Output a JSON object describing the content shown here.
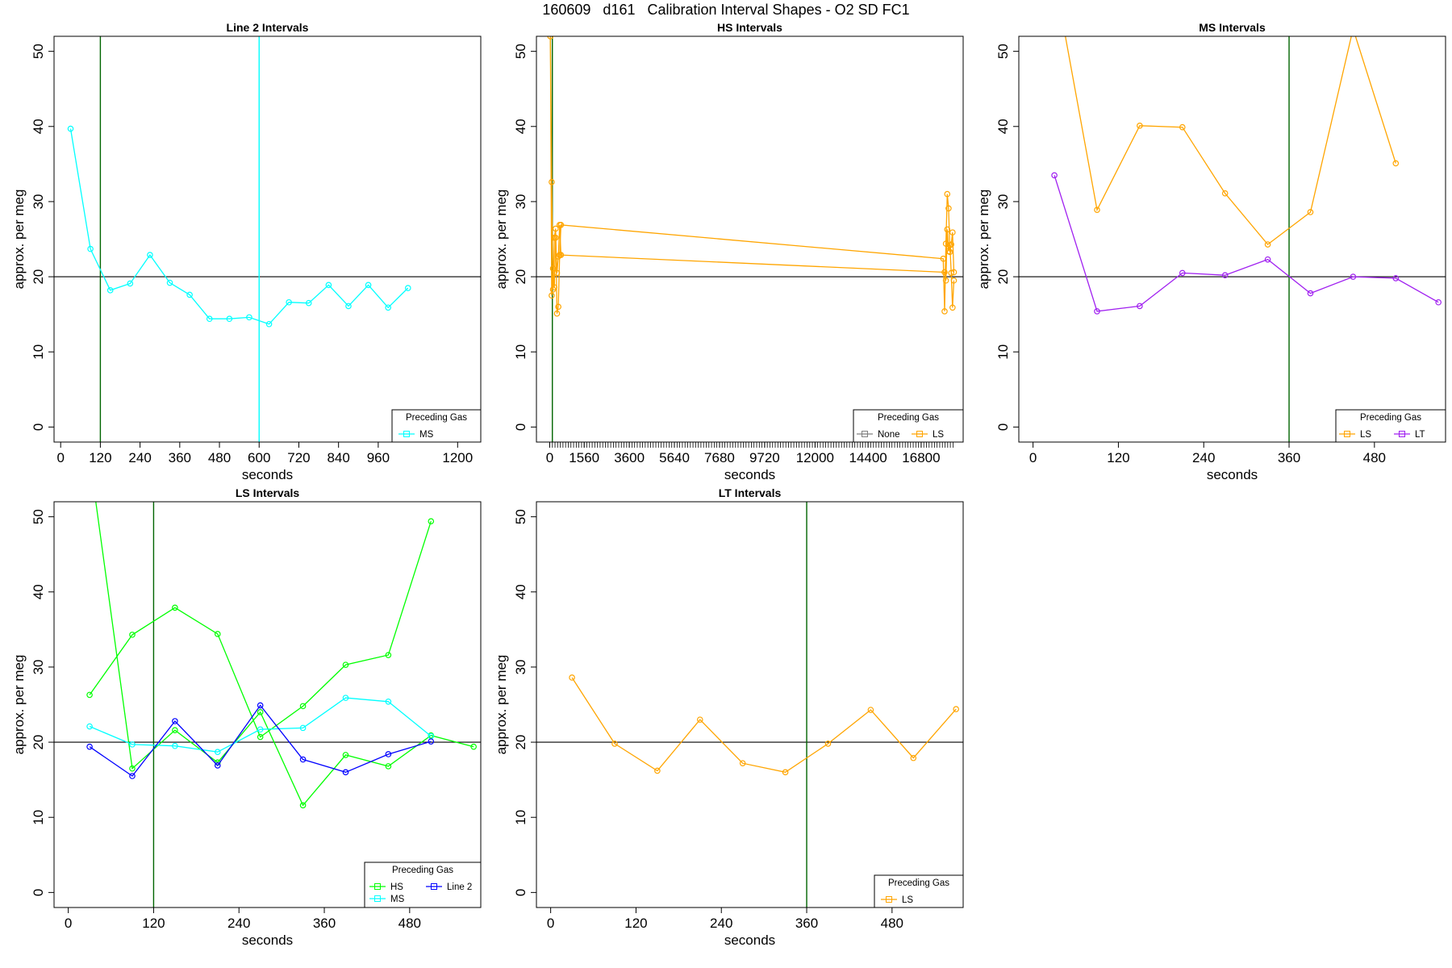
{
  "figure": {
    "title": "160609   d161   Calibration Interval Shapes - O2 SD FC1"
  },
  "chart_data": [
    {
      "type": "line",
      "title": "Line 2 Intervals",
      "xlabel": "seconds",
      "ylabel": "approx. per meg",
      "xlim": [
        -20,
        1270
      ],
      "ylim": [
        -2,
        52
      ],
      "xticks": [
        "0",
        "120",
        "240",
        "360",
        "480",
        "600",
        "720",
        "840",
        "960",
        "1200"
      ],
      "xtick_values": [
        0,
        120,
        240,
        360,
        480,
        600,
        720,
        840,
        960,
        1200
      ],
      "yticks": [
        0,
        10,
        20,
        30,
        40,
        50
      ],
      "hlines": [
        {
          "y": 20,
          "color": "#000000"
        }
      ],
      "vlines": [
        {
          "x": 120,
          "color": "#006400"
        },
        {
          "x": 600,
          "color": "#00ffff"
        }
      ],
      "legend": {
        "title": "Preceding Gas",
        "position": "bottom-right",
        "entries": [
          {
            "name": "MS",
            "color": "#00ffff"
          }
        ]
      },
      "series": [
        {
          "name": "MS",
          "color": "#00ffff",
          "x": [
            30,
            90,
            150,
            210,
            270,
            330,
            390,
            450,
            510,
            570,
            630,
            690,
            750,
            810,
            870,
            930,
            990,
            1050
          ],
          "y": [
            39.7,
            23.7,
            18.2,
            19.1,
            22.9,
            19.2,
            17.6,
            14.4,
            14.4,
            14.6,
            13.7,
            16.6,
            16.5,
            18.9,
            16.1,
            18.9,
            15.9,
            18.5
          ]
        }
      ]
    },
    {
      "type": "line",
      "title": "HS Intervals",
      "xlabel": "seconds",
      "ylabel": "approx. per meg",
      "xlim": [
        -600,
        18700
      ],
      "ylim": [
        -2,
        52
      ],
      "xticks": [
        "0",
        "1560",
        "3600",
        "5640",
        "7680",
        "9720",
        "12000",
        "14400",
        "16800"
      ],
      "xtick_values": [
        0,
        1560,
        3600,
        5640,
        7680,
        9720,
        12000,
        14400,
        16800
      ],
      "yticks": [
        0,
        10,
        20,
        30,
        40,
        50
      ],
      "hlines": [
        {
          "y": 20,
          "color": "#000000"
        }
      ],
      "vlines": [
        {
          "x": 120,
          "color": "#006400"
        }
      ],
      "legend": {
        "title": "Preceding Gas",
        "position": "bottom-right",
        "entries": [
          {
            "name": "None",
            "color": "#808080"
          },
          {
            "name": "LS",
            "color": "#ffa500"
          }
        ]
      },
      "series": [
        {
          "name": "LS",
          "color": "#ffa500",
          "x": [
            30,
            90,
            150,
            210,
            270,
            330,
            390,
            450,
            510,
            17800,
            17860,
            17920,
            17980,
            18040,
            18100,
            18160,
            18220,
            18280
          ],
          "y": [
            52,
            32.6,
            18.3,
            25.2,
            26.4,
            15.1,
            16.0,
            22.9,
            26.9,
            22.4,
            15.4,
            24.4,
            31.0,
            29.1,
            23.3,
            24.3,
            25.9,
            20.6
          ]
        },
        {
          "name": "LS",
          "color": "#ffa500",
          "x": [
            30,
            90,
            150,
            210,
            270,
            330,
            390,
            450,
            510,
            17860,
            17920,
            17980,
            18040,
            18100,
            18160,
            18220,
            18280
          ],
          "y": [
            52,
            17.5,
            21.1,
            18.6,
            25.2,
            20.5,
            22.7,
            26.9,
            22.9,
            20.6,
            19.5,
            26.3,
            23.4,
            24.2,
            20.5,
            15.9,
            19.5
          ]
        }
      ]
    },
    {
      "type": "line",
      "title": "MS Intervals",
      "xlabel": "seconds",
      "ylabel": "approx. per meg",
      "xlim": [
        -20,
        580
      ],
      "ylim": [
        -2,
        52
      ],
      "xticks": [
        "0",
        "120",
        "240",
        "360",
        "480"
      ],
      "xtick_values": [
        0,
        120,
        240,
        360,
        480
      ],
      "yticks": [
        0,
        10,
        20,
        30,
        40,
        50
      ],
      "hlines": [
        {
          "y": 20,
          "color": "#000000"
        }
      ],
      "vlines": [
        {
          "x": 360,
          "color": "#006400"
        }
      ],
      "legend": {
        "title": "Preceding Gas",
        "position": "bottom-right",
        "entries": [
          {
            "name": "LS",
            "color": "#ffa500"
          },
          {
            "name": "LT",
            "color": "#a020f0"
          }
        ]
      },
      "series": [
        {
          "name": "LS",
          "color": "#ffa500",
          "x": [
            30,
            90,
            150,
            210,
            270,
            330,
            390,
            450,
            510
          ],
          "y": [
            60,
            28.9,
            40.1,
            39.9,
            31.1,
            24.3,
            28.6,
            53,
            35.1
          ]
        },
        {
          "name": "LT",
          "color": "#a020f0",
          "x": [
            30,
            90,
            150,
            210,
            270,
            330,
            390,
            450,
            510,
            570
          ],
          "y": [
            33.5,
            15.4,
            16.1,
            20.5,
            20.2,
            22.3,
            17.8,
            20.0,
            19.8,
            16.6
          ]
        }
      ]
    },
    {
      "type": "line",
      "title": "LS Intervals",
      "xlabel": "seconds",
      "ylabel": "approx. per meg",
      "xlim": [
        -20,
        580
      ],
      "ylim": [
        -2,
        52
      ],
      "xticks": [
        "0",
        "120",
        "240",
        "360",
        "480"
      ],
      "xtick_values": [
        0,
        120,
        240,
        360,
        480
      ],
      "yticks": [
        0,
        10,
        20,
        30,
        40,
        50
      ],
      "hlines": [
        {
          "y": 20,
          "color": "#000000"
        }
      ],
      "vlines": [
        {
          "x": 120,
          "color": "#006400"
        }
      ],
      "legend": {
        "title": "Preceding Gas",
        "position": "bottom-right",
        "entries": [
          {
            "name": "HS",
            "color": "#00ff00"
          },
          {
            "name": "MS",
            "color": "#00ffff"
          },
          {
            "name": "Line 2",
            "color": "#0000ff"
          }
        ]
      },
      "series": [
        {
          "name": "HS",
          "color": "#00ff00",
          "x": [
            30,
            90,
            150,
            210,
            270,
            330,
            390,
            450,
            510
          ],
          "y": [
            26.3,
            34.3,
            37.9,
            34.4,
            20.7,
            24.8,
            30.3,
            31.6,
            49.4
          ]
        },
        {
          "name": "HS",
          "color": "#00ff00",
          "x": [
            30,
            90,
            150,
            210,
            270,
            330,
            390,
            450,
            510,
            570
          ],
          "y": [
            58,
            16.5,
            21.6,
            17.3,
            24.0,
            11.6,
            18.3,
            16.8,
            20.9,
            19.4
          ]
        },
        {
          "name": "MS",
          "color": "#00ffff",
          "x": [
            30,
            90,
            150,
            210,
            270,
            330,
            390,
            450,
            510
          ],
          "y": [
            22.1,
            19.7,
            19.5,
            18.7,
            21.7,
            21.9,
            25.9,
            25.4,
            20.8
          ]
        },
        {
          "name": "Line 2",
          "color": "#0000ff",
          "x": [
            30,
            90,
            150,
            210,
            270,
            330,
            390,
            450,
            510
          ],
          "y": [
            19.4,
            15.5,
            22.8,
            16.9,
            24.9,
            17.7,
            16.0,
            18.4,
            20.1
          ]
        }
      ]
    },
    {
      "type": "line",
      "title": "LT Intervals",
      "xlabel": "seconds",
      "ylabel": "approx. per meg",
      "xlim": [
        -20,
        580
      ],
      "ylim": [
        -2,
        52
      ],
      "xticks": [
        "0",
        "120",
        "240",
        "360",
        "480"
      ],
      "xtick_values": [
        0,
        120,
        240,
        360,
        480
      ],
      "yticks": [
        0,
        10,
        20,
        30,
        40,
        50
      ],
      "hlines": [
        {
          "y": 20,
          "color": "#000000"
        }
      ],
      "vlines": [
        {
          "x": 360,
          "color": "#006400"
        }
      ],
      "legend": {
        "title": "Preceding Gas",
        "position": "bottom-right",
        "entries": [
          {
            "name": "LS",
            "color": "#ffa500"
          }
        ]
      },
      "series": [
        {
          "name": "LS",
          "color": "#ffa500",
          "x": [
            30,
            90,
            150,
            210,
            270,
            330,
            390,
            450,
            510,
            570
          ],
          "y": [
            28.6,
            19.8,
            16.2,
            23.0,
            17.2,
            16.0,
            19.8,
            24.3,
            17.9,
            24.4
          ]
        }
      ]
    }
  ]
}
